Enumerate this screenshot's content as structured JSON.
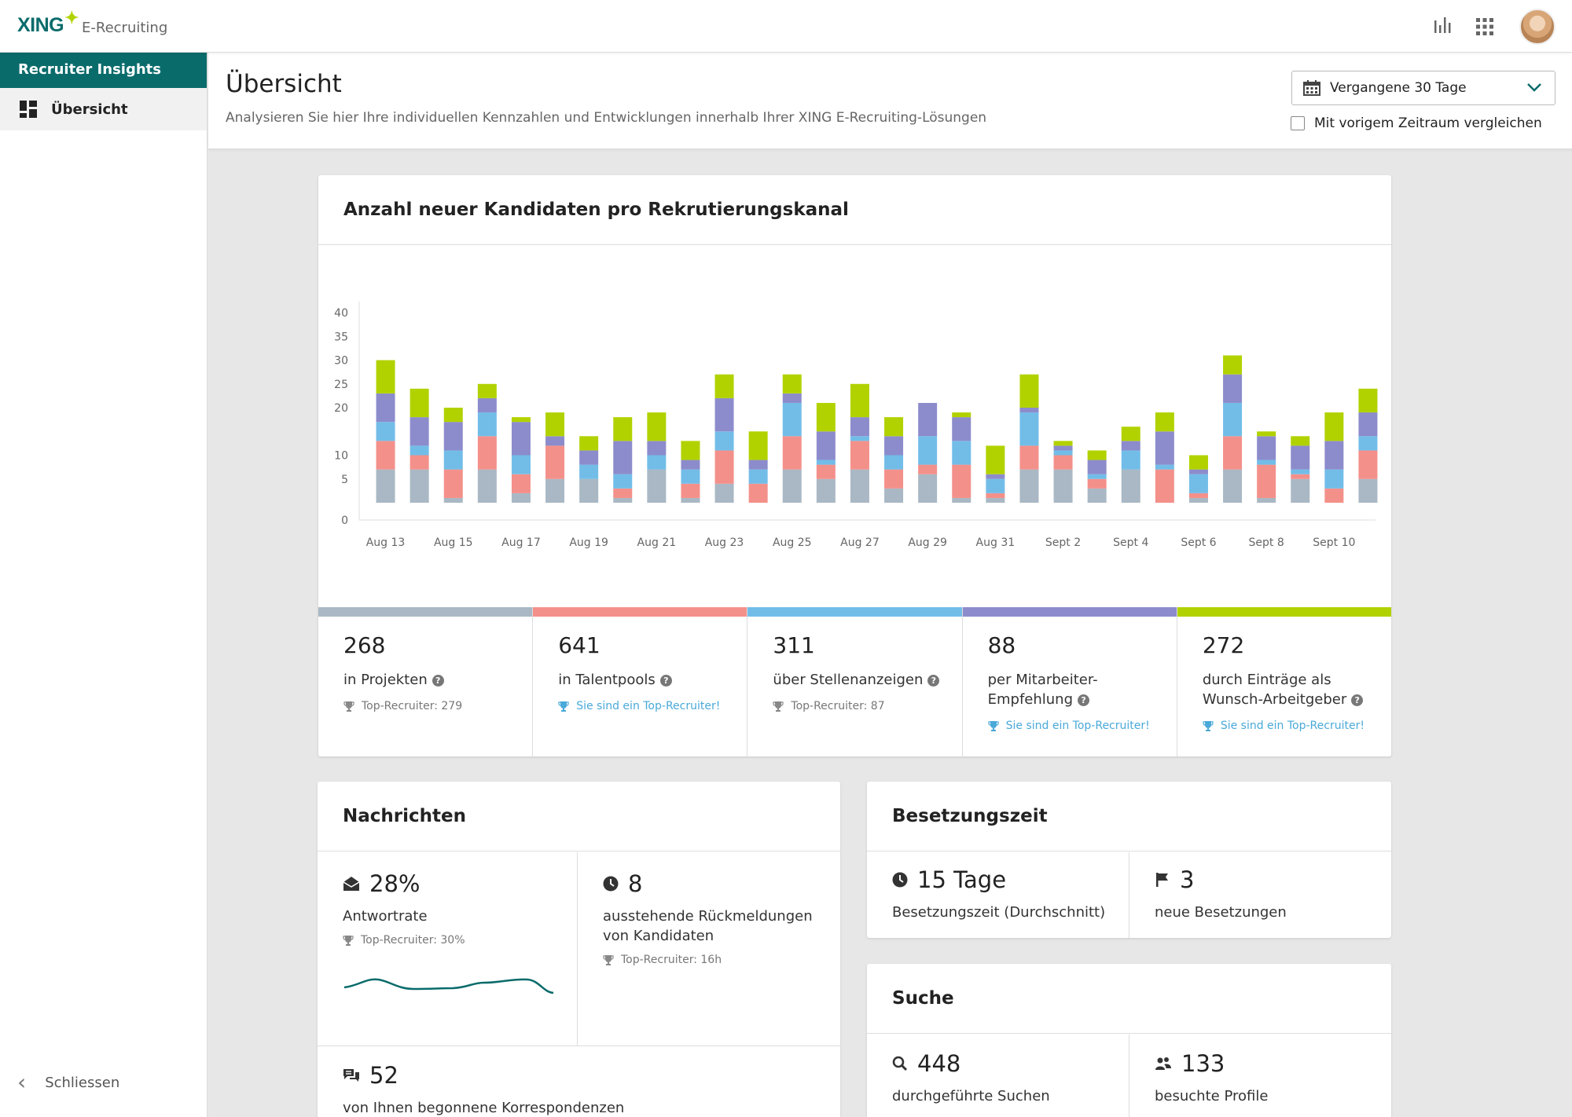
{
  "app": {
    "logo": "XING",
    "product": "E-Recruiting"
  },
  "sidebar": {
    "heading": "Recruiter Insights",
    "items": [
      {
        "label": "Übersicht",
        "icon": "dashboard-icon"
      }
    ],
    "close_label": "Schliessen"
  },
  "header": {
    "title": "Übersicht",
    "subtitle": "Analysieren Sie hier Ihre individuellen Kennzahlen und Entwicklungen innerhalb Ihrer XING E-Recruiting-Lösungen",
    "period_selected": "Vergangene 30 Tage",
    "compare_label": "Mit vorigem Zeitraum vergleichen",
    "compare_checked": false
  },
  "chart_card": {
    "title": "Anzahl neuer Kandidaten pro Rekrutierungskanal"
  },
  "chart_data": {
    "type": "bar",
    "stacked": true,
    "title": "Anzahl neuer Kandidaten pro Rekrutierungskanal",
    "ylim": [
      0,
      40
    ],
    "yticks": [
      0,
      5,
      10,
      20,
      25,
      30,
      35,
      40
    ],
    "categories": [
      "Aug 13",
      "Aug 14",
      "Aug 15",
      "Aug 16",
      "Aug 17",
      "Aug 18",
      "Aug 19",
      "Aug 20",
      "Aug 21",
      "Aug 22",
      "Aug 23",
      "Aug 24",
      "Aug 25",
      "Aug 26",
      "Aug 27",
      "Aug 28",
      "Aug 29",
      "Aug 30",
      "Aug 31",
      "Sept 1",
      "Sept 2",
      "Sept 3",
      "Sept 4",
      "Sept 5",
      "Sept 6",
      "Sept 7",
      "Sept 8",
      "Sept 9",
      "Sept 10",
      "Sept 11"
    ],
    "xtick_labels": [
      "Aug 13",
      "Aug 15",
      "Aug 17",
      "Aug 19",
      "Aug 21",
      "Aug 23",
      "Aug 25",
      "Aug 27",
      "Aug 29",
      "Aug 31",
      "Sept 2",
      "Sept 4",
      "Sept 6",
      "Sept 8",
      "Sept 10"
    ],
    "series": [
      {
        "color": "#a9b8c4",
        "values": [
          7,
          7,
          1,
          7,
          2,
          5,
          5,
          1,
          7,
          1,
          4,
          0,
          7,
          5,
          7,
          3,
          6,
          1,
          1,
          7,
          7,
          3,
          7,
          0,
          1,
          7,
          1,
          5,
          0,
          5
        ]
      },
      {
        "color": "#f4908a",
        "values": [
          6,
          3,
          6,
          7,
          4,
          7,
          0,
          2,
          0,
          3,
          7,
          4,
          7,
          3,
          6,
          4,
          2,
          7,
          1,
          5,
          3,
          2,
          0,
          7,
          1,
          7,
          7,
          1,
          3,
          6
        ]
      },
      {
        "color": "#72bde8",
        "values": [
          4,
          2,
          4,
          5,
          4,
          0,
          3,
          3,
          3,
          3,
          4,
          3,
          7,
          1,
          1,
          3,
          6,
          5,
          3,
          7,
          1,
          1,
          4,
          1,
          4,
          7,
          1,
          1,
          4,
          3
        ]
      },
      {
        "color": "#8c8ccc",
        "values": [
          6,
          6,
          6,
          3,
          7,
          2,
          3,
          7,
          3,
          2,
          7,
          2,
          2,
          6,
          4,
          4,
          7,
          5,
          1,
          1,
          1,
          3,
          2,
          7,
          1,
          6,
          5,
          5,
          6,
          5
        ]
      },
      {
        "color": "#b2d200",
        "values": [
          7,
          6,
          3,
          3,
          1,
          5,
          3,
          5,
          6,
          4,
          5,
          6,
          4,
          6,
          7,
          4,
          0,
          1,
          6,
          7,
          1,
          2,
          3,
          4,
          3,
          4,
          1,
          2,
          6,
          5
        ]
      }
    ]
  },
  "channels": [
    {
      "count": "268",
      "label": "in Projekten",
      "note": "Top-Recruiter: 279",
      "top": false,
      "color": "#a9b8c4"
    },
    {
      "count": "641",
      "label": "in Talentpools",
      "note": "Sie sind ein Top-Recruiter!",
      "top": true,
      "color": "#f4908a"
    },
    {
      "count": "311",
      "label": "über Stellenanzeigen",
      "note": "Top-Recruiter: 87",
      "top": false,
      "color": "#72bde8"
    },
    {
      "count": "88",
      "label": "per Mitarbeiter-Empfehlung",
      "note": "Sie sind ein Top-Recruiter!",
      "top": true,
      "color": "#8c8ccc"
    },
    {
      "count": "272",
      "label": "durch Einträge als Wunsch-Arbeitgeber",
      "note": "Sie sind ein Top-Recruiter!",
      "top": true,
      "color": "#b2d200"
    }
  ],
  "messages": {
    "title": "Nachrichten",
    "response_rate": "28%",
    "response_label": "Antwortrate",
    "response_note": "Top-Recruiter: 30%",
    "pending": "8",
    "pending_label": "ausstehende Rückmeldungen von Kandidaten",
    "pending_note": "Top-Recruiter: 16h",
    "started": "52",
    "started_label": "von Ihnen begonnene Korrespondenzen"
  },
  "besetzung": {
    "title": "Besetzungszeit",
    "avg": "15 Tage",
    "avg_label": "Besetzungszeit (Durchschnitt)",
    "new": "3",
    "new_label": "neue Besetzungen"
  },
  "suche": {
    "title": "Suche",
    "searches": "448",
    "searches_label": "durchgeführte Suchen",
    "profiles": "133",
    "profiles_label": "besuchte Profile"
  },
  "colors": {
    "brand": "#0a6b6b",
    "accent": "#b2d200",
    "highlight": "#4aa9d9"
  }
}
